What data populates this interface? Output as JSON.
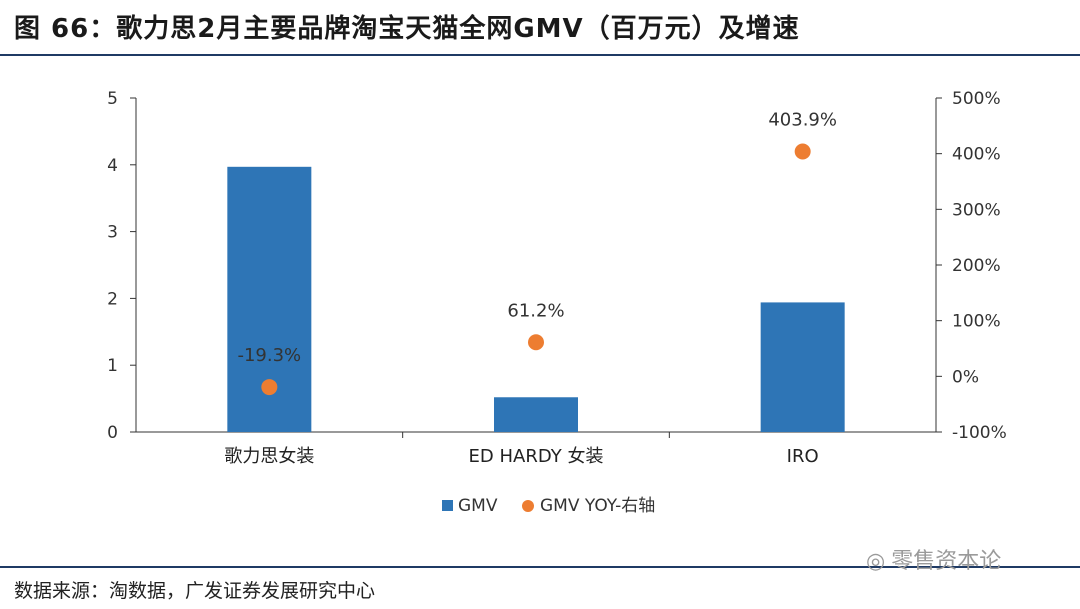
{
  "header": {
    "title": "图 66：歌力思2月主要品牌淘宝天猫全网GMV（百万元）及增速"
  },
  "footer": {
    "source": "数据来源：淘数据，广发证券发展研究中心",
    "watermark": "零售资本论"
  },
  "colors": {
    "bar": "#2e75b6",
    "dot": "#ed7d31",
    "rule": "#1f3a64"
  },
  "chart_data": {
    "type": "bar",
    "categories": [
      "歌力思女装",
      "ED HARDY 女装",
      "IRO"
    ],
    "series": [
      {
        "name": "GMV",
        "type": "bar",
        "axis": "left",
        "values": [
          3.97,
          0.52,
          1.94
        ]
      },
      {
        "name": "GMV YOY-右轴",
        "type": "scatter",
        "axis": "right",
        "values": [
          -19.3,
          61.2,
          403.9
        ],
        "labels": [
          "-19.3%",
          "61.2%",
          "403.9%"
        ]
      }
    ],
    "y_left": {
      "min": 0,
      "max": 5,
      "ticks": [
        "0",
        "1",
        "2",
        "3",
        "4",
        "5"
      ]
    },
    "y_right": {
      "min": -100,
      "max": 500,
      "ticks": [
        "-100%",
        "0%",
        "100%",
        "200%",
        "300%",
        "400%",
        "500%"
      ]
    },
    "legend": {
      "position": "bottom",
      "items": [
        "GMV",
        "GMV YOY-右轴"
      ]
    },
    "grid": false
  }
}
